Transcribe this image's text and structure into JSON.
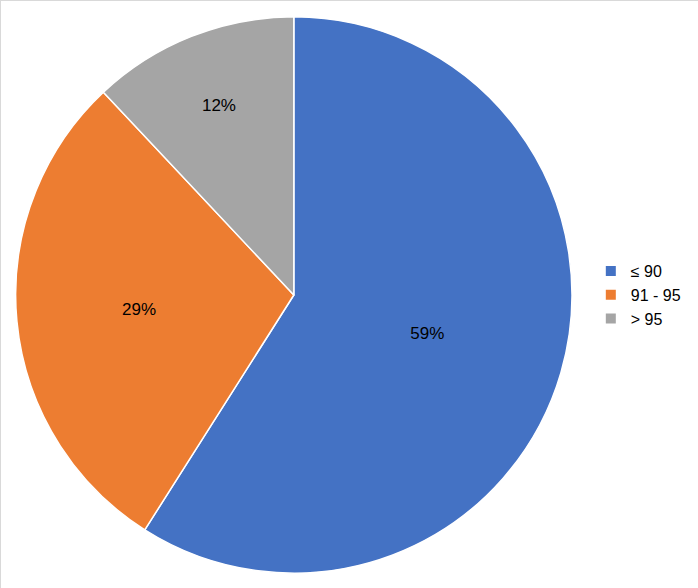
{
  "chart_data": {
    "type": "pie",
    "categories": [
      "≤ 90",
      "91 - 95",
      "> 95"
    ],
    "values": [
      59,
      29,
      12
    ],
    "value_labels": [
      "59%",
      "29%",
      "12%"
    ],
    "colors": [
      "#4472c4",
      "#ed7d31",
      "#a5a5a5"
    ],
    "data_labels": true,
    "legend": "right"
  }
}
